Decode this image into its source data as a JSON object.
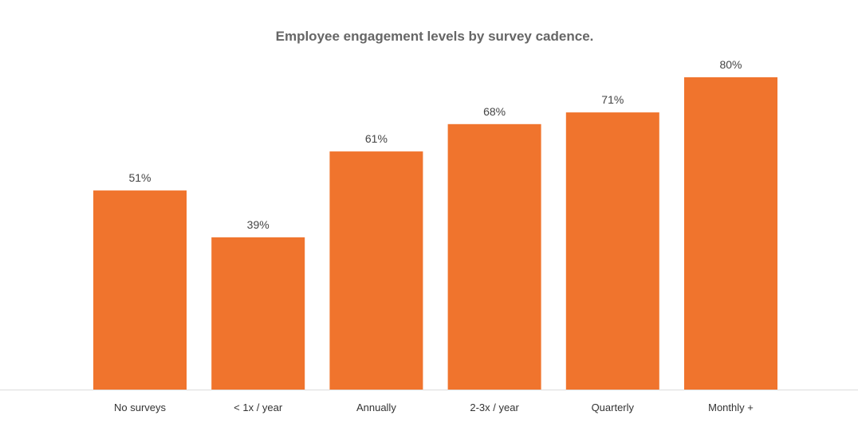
{
  "chart_data": {
    "type": "bar",
    "title": "Employee engagement levels by survey cadence.",
    "categories": [
      "No surveys",
      "< 1x / year",
      "Annually",
      "2-3x / year",
      "Quarterly",
      "Monthly +"
    ],
    "values": [
      51,
      39,
      61,
      68,
      71,
      80
    ],
    "data_labels": [
      "51%",
      "39%",
      "61%",
      "68%",
      "71%",
      "80%"
    ],
    "xlabel": "",
    "ylabel": "",
    "ylim": [
      0,
      100
    ],
    "grid": false,
    "legend": "none",
    "bar_color": "#F0742D",
    "axis_color": "#DDDDDD"
  }
}
